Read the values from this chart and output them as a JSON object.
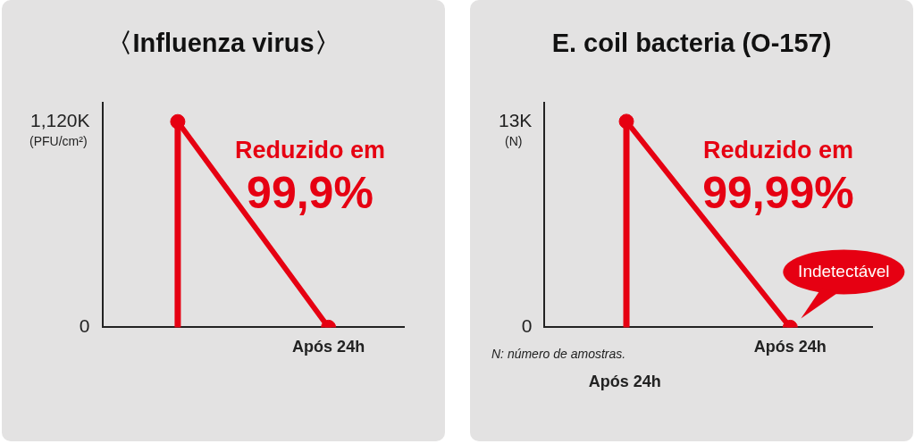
{
  "chart_data": [
    {
      "type": "lollipop",
      "title": "〈Influenza virus〉",
      "ylabel": "(PFU/cm²)",
      "categories": [
        null,
        "Após 24h"
      ],
      "series": [
        {
          "color": "#e60012",
          "values": [
            1120,
            0
          ]
        },
        {
          "type": "line",
          "color": "#e60012",
          "values": [
            1120,
            0
          ],
          "marker": "none"
        }
      ],
      "ylim": [
        0,
        1225
      ],
      "yticks": [
        0,
        {
          "value": 1120,
          "label": "1,120K"
        }
      ],
      "marker": "circle",
      "legend": false,
      "grid": false,
      "annotations": [
        "Reduzido em",
        "99,9%"
      ]
    },
    {
      "type": "lollipop",
      "title": "E. coil bacteria (O-157)",
      "ylabel": "(N)",
      "categories": [
        null,
        "Após 24h"
      ],
      "series": [
        {
          "color": "#e60012",
          "values": [
            13,
            0
          ]
        },
        {
          "type": "line",
          "color": "#e60012",
          "values": [
            13,
            0
          ],
          "marker": "none"
        }
      ],
      "ylim": [
        0,
        14.2
      ],
      "yticks": [
        0,
        {
          "value": 13,
          "label": "13K"
        }
      ],
      "marker": "circle",
      "legend": false,
      "grid": false,
      "annotations": [
        "Reduzido em",
        "99,99%",
        "N: número de amostras.",
        "Após 24h",
        {
          "text": "Indetectável",
          "x": "Após 24h",
          "y": 0
        }
      ]
    }
  ]
}
